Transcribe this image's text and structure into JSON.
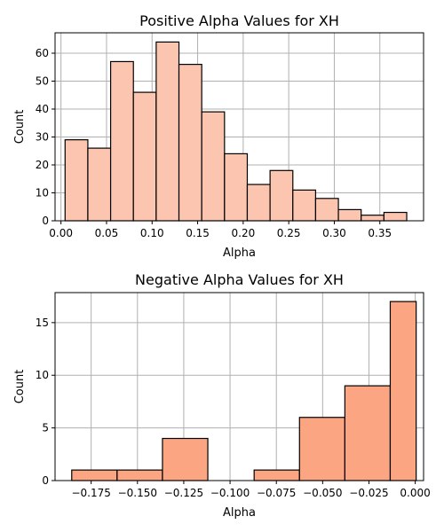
{
  "chart_data": [
    {
      "type": "bar",
      "title": "Positive Alpha Values for XH",
      "xlabel": "Alpha",
      "ylabel": "Count",
      "color": "#fcc5b0",
      "grid": true,
      "xlim": [
        -0.0065,
        0.398
      ],
      "ylim": [
        0,
        67.3
      ],
      "xticks": [
        0.0,
        0.05,
        0.1,
        0.15,
        0.2,
        0.25,
        0.3,
        0.35
      ],
      "xtick_labels": [
        "0.00",
        "0.05",
        "0.10",
        "0.15",
        "0.20",
        "0.25",
        "0.30",
        "0.35"
      ],
      "yticks": [
        0,
        10,
        20,
        30,
        40,
        50,
        60
      ],
      "ytick_labels": [
        "0",
        "10",
        "20",
        "30",
        "40",
        "50",
        "60"
      ],
      "bin_edges": [
        0.0045,
        0.0295,
        0.0545,
        0.0795,
        0.1045,
        0.1295,
        0.1545,
        0.1795,
        0.2045,
        0.2295,
        0.2545,
        0.2795,
        0.3045,
        0.3295,
        0.3545,
        0.3795
      ],
      "values": [
        29,
        26,
        57,
        46,
        64,
        56,
        39,
        24,
        13,
        18,
        11,
        8,
        4,
        2,
        3
      ]
    },
    {
      "type": "bar",
      "title": "Negative Alpha Values for XH",
      "xlabel": "Alpha",
      "ylabel": "Count",
      "color": "#fca583",
      "grid": true,
      "xlim": [
        -0.1945,
        0.0045
      ],
      "ylim": [
        0,
        17.85
      ],
      "xticks": [
        -0.175,
        -0.15,
        -0.125,
        -0.1,
        -0.075,
        -0.05,
        -0.025,
        0.0
      ],
      "xtick_labels": [
        "−0.175",
        "−0.150",
        "−0.125",
        "−0.100",
        "−0.075",
        "−0.050",
        "−0.025",
        "0.000"
      ],
      "yticks": [
        0,
        5,
        10,
        15
      ],
      "ytick_labels": [
        "0",
        "5",
        "10",
        "15"
      ],
      "bin_edges": [
        -0.186,
        -0.161,
        -0.136,
        -0.111,
        -0.086,
        -0.061,
        -0.036,
        -0.011
      ],
      "bin_edges_full": [
        -0.1855,
        -0.161,
        -0.1365,
        -0.112,
        -0.087,
        -0.0625,
        -0.038,
        -0.0135,
        0.0005
      ],
      "values": [
        1,
        1,
        4,
        0,
        1,
        6,
        9,
        17
      ]
    }
  ]
}
